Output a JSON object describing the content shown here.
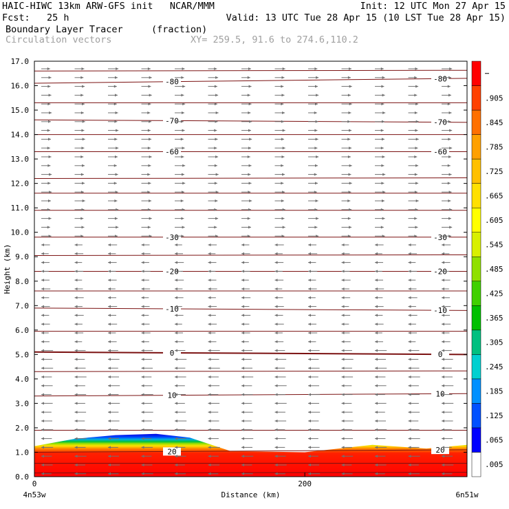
{
  "header": {
    "line1_left": "HAIC-HIWC 13km ARW-GFS init   NCAR/MMM",
    "line1_right": "Init: 12 UTC Mon 27 Apr 15",
    "line2_left": "Fcst:   25 h",
    "line2_right": "Valid: 13 UTC Tue 28 Apr 15 (10 LST Tue 28 Apr 15)",
    "field_name": "Boundary Layer Tracer",
    "field_units": "(fraction)",
    "vector_label": "Circulation vectors",
    "xy_label": "XY= 259.5, 91.6 to 274.6,110.2"
  },
  "chart_data": {
    "type": "heatmap",
    "xlabel": "Distance (km)",
    "ylabel": "Height (km)",
    "xlim": [
      0,
      320
    ],
    "ylim": [
      0,
      17
    ],
    "x_ticks": [
      {
        "value": 0,
        "label": "0"
      },
      {
        "value": 200,
        "label": "200"
      }
    ],
    "x_end_labels": {
      "left": "4n53w",
      "right": "6n51w"
    },
    "y_ticks": [
      "0.0",
      "1.0",
      "2.0",
      "3.0",
      "4.0",
      "5.0",
      "6.0",
      "7.0",
      "8.0",
      "9.0",
      "10.0",
      "11.0",
      "12.0",
      "13.0",
      "14.0",
      "15.0",
      "16.0",
      "17.0"
    ],
    "colorbar": {
      "labels": [
        ".005",
        ".065",
        ".125",
        ".185",
        ".245",
        ".305",
        ".365",
        ".425",
        ".485",
        ".545",
        ".605",
        ".665",
        ".725",
        ".785",
        ".845",
        ".905"
      ],
      "colors": [
        "#ffffff",
        "#0000ff",
        "#0050ff",
        "#0090ff",
        "#00d0d0",
        "#00c080",
        "#00c000",
        "#40d000",
        "#90e000",
        "#d8f000",
        "#ffff00",
        "#ffe000",
        "#ffc000",
        "#ffa000",
        "#ff7000",
        "#ff4000",
        "#ff0000"
      ]
    },
    "tracer_top_km": [
      {
        "x": 0,
        "y": 1.25
      },
      {
        "x": 30,
        "y": 1.55
      },
      {
        "x": 60,
        "y": 1.7
      },
      {
        "x": 90,
        "y": 1.75
      },
      {
        "x": 115,
        "y": 1.6
      },
      {
        "x": 145,
        "y": 1.05
      },
      {
        "x": 200,
        "y": 1.0
      },
      {
        "x": 250,
        "y": 1.3
      },
      {
        "x": 290,
        "y": 1.15
      },
      {
        "x": 320,
        "y": 1.3
      }
    ],
    "temperature_isotherms": [
      {
        "label": "0",
        "y0": 5.1,
        "y1": 5.0
      },
      {
        "label": "-10",
        "y0": 6.9,
        "y1": 6.8
      },
      {
        "label": "-20",
        "y0": 8.4,
        "y1": 8.4
      },
      {
        "label": "-30",
        "y0": 9.8,
        "y1": 9.8
      },
      {
        "label": "-60",
        "y0": 13.3,
        "y1": 13.3
      },
      {
        "label": "-70",
        "y0": 14.6,
        "y1": 14.5
      },
      {
        "label": "-80",
        "y0": 16.1,
        "y1": 16.3
      },
      {
        "label": "10",
        "y0": 3.3,
        "y1": 3.4
      },
      {
        "label": "20",
        "y0": 1.0,
        "y1": 1.1
      }
    ],
    "extra_contour_km": [
      0.15,
      0.55,
      1.9,
      4.3,
      5.95,
      7.6,
      9.05,
      10.9,
      11.6,
      12.2,
      14.0,
      15.3,
      16.6
    ]
  }
}
